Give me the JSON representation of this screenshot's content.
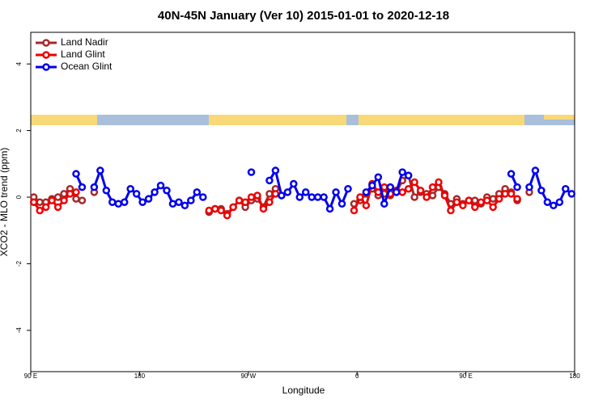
{
  "chart_data": {
    "type": "line",
    "title": "40N-45N January (Ver 10)   2015-01-01 to 2020-12-18",
    "xlabel": "Longitude",
    "ylabel": "XCO2 - MLO trend (ppm)",
    "xlim": [
      90,
      540
    ],
    "ylim": [
      -5.24,
      4.95
    ],
    "xticks": [
      {
        "value": 90,
        "label": "90 E"
      },
      {
        "value": 180,
        "label": "180"
      },
      {
        "value": 270,
        "label": "90 W"
      },
      {
        "value": 360,
        "label": "0"
      },
      {
        "value": 450,
        "label": "90 E"
      },
      {
        "value": 540,
        "label": "180"
      }
    ],
    "yticks": [
      -4,
      -2,
      0,
      2,
      4
    ],
    "legend": "top-left",
    "series": [
      {
        "name": "Land Nadir",
        "color": "#a52a2a",
        "x": [
          92.5,
          97.5,
          102.5,
          107.5,
          112.5,
          117.5,
          122.5,
          127.5,
          132.5,
          137.5,
          142.5,
          147.5,
          237.5,
          242.5,
          247.5,
          252.5,
          257.5,
          262.5,
          267.5,
          272.5,
          277.5,
          282.5,
          287.5,
          292.5,
          297.5,
          357.5,
          362.5,
          367.5,
          372.5,
          377.5,
          382.5,
          387.5,
          392.5,
          397.5,
          402.5,
          407.5,
          412.5,
          417.5,
          422.5,
          427.5,
          432.5,
          437.5,
          442.5,
          447.5,
          452.5,
          457.5,
          462.5,
          467.5,
          472.5,
          477.5,
          482.5,
          487.5,
          492.5,
          497.5,
          502.5
        ],
        "values": [
          0,
          -0.15,
          -0.15,
          -0.05,
          0,
          0.1,
          0.25,
          -0.05,
          -0.1,
          null,
          0.15,
          null,
          -0.45,
          -0.35,
          -0.35,
          -0.5,
          -0.3,
          -0.1,
          -0.3,
          -0.1,
          -0.05,
          -0.3,
          0.1,
          0.25,
          null,
          -0.2,
          -0.1,
          0.1,
          0.25,
          0.05,
          0.1,
          0.05,
          0.15,
          0.5,
          0.65,
          0,
          0.15,
          0.1,
          0.05,
          0.3,
          0.1,
          -0.2,
          -0.05,
          -0.2,
          -0.1,
          -0.1,
          -0.2,
          0,
          -0.05,
          0.1,
          0.25,
          0.15,
          -0.1,
          null,
          0.15
        ]
      },
      {
        "name": "Land Glint",
        "color": "#ee0000",
        "x": [
          92.5,
          97.5,
          102.5,
          107.5,
          112.5,
          117.5,
          122.5,
          127.5,
          132.5,
          237.5,
          242.5,
          247.5,
          252.5,
          257.5,
          262.5,
          267.5,
          272.5,
          277.5,
          282.5,
          287.5,
          292.5,
          297.5,
          357.5,
          362.5,
          367.5,
          372.5,
          377.5,
          382.5,
          387.5,
          392.5,
          397.5,
          402.5,
          407.5,
          412.5,
          417.5,
          422.5,
          427.5,
          432.5,
          437.5,
          442.5,
          447.5,
          452.5,
          457.5,
          462.5,
          467.5,
          472.5,
          477.5,
          482.5,
          487.5,
          492.5
        ],
        "values": [
          -0.15,
          -0.4,
          -0.3,
          -0.1,
          -0.3,
          -0.1,
          0.1,
          0.15,
          null,
          -0.4,
          -0.35,
          -0.4,
          -0.55,
          -0.3,
          -0.1,
          -0.15,
          0,
          0.05,
          -0.35,
          -0.15,
          0.1,
          null,
          -0.4,
          0,
          -0.25,
          0.4,
          0.15,
          0.3,
          0.1,
          0.2,
          0.15,
          0.25,
          0.45,
          0.2,
          0,
          0.3,
          0.45,
          0.05,
          -0.4,
          -0.15,
          -0.25,
          -0.1,
          -0.3,
          -0.15,
          -0.1,
          -0.3,
          -0.05,
          0.1,
          0.1,
          -0.05
        ]
      },
      {
        "name": "Ocean Glint",
        "color": "#0000ee",
        "x": [
          127.5,
          132.5,
          137.5,
          142.5,
          147.5,
          152.5,
          157.5,
          162.5,
          167.5,
          172.5,
          177.5,
          182.5,
          187.5,
          192.5,
          197.5,
          202.5,
          207.5,
          212.5,
          217.5,
          222.5,
          227.5,
          232.5,
          237.5,
          272.5,
          277.5,
          287.5,
          292.5,
          297.5,
          302.5,
          307.5,
          312.5,
          317.5,
          322.5,
          327.5,
          332.5,
          337.5,
          342.5,
          347.5,
          352.5,
          357.5,
          367.5,
          372.5,
          377.5,
          382.5,
          387.5,
          392.5,
          397.5,
          402.5,
          407.5,
          487.5,
          492.5,
          497.5,
          502.5,
          507.5,
          512.5,
          517.5,
          522.5,
          527.5,
          532.5,
          537.5
        ],
        "values": [
          0.7,
          0.3,
          null,
          0.3,
          0.8,
          0.2,
          -0.15,
          -0.2,
          -0.15,
          0.25,
          0.1,
          -0.15,
          -0.05,
          0.15,
          0.35,
          0.2,
          -0.2,
          -0.15,
          -0.25,
          -0.1,
          0.15,
          0,
          null,
          0.75,
          null,
          0.5,
          0.8,
          0.05,
          0.15,
          0.4,
          0,
          0.15,
          0,
          0,
          0,
          -0.35,
          0.15,
          -0.2,
          0.25,
          null,
          0.15,
          0.35,
          0.6,
          -0.2,
          0.3,
          0.15,
          0.75,
          0.65,
          null,
          0.7,
          0.3,
          null,
          0.3,
          0.8,
          0.2,
          -0.15,
          -0.25,
          -0.15,
          0.25,
          0.1
        ]
      }
    ]
  }
}
